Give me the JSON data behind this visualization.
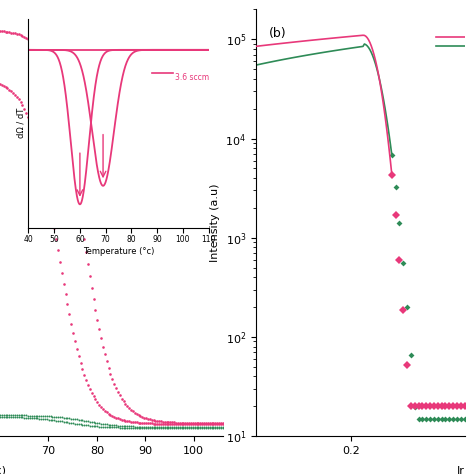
{
  "pink_color": "#E8387A",
  "green_color": "#2E8B57",
  "bg_color": "#FFFFFF",
  "inset_label": "3.6 sccm",
  "panel_b_label": "(b)",
  "ylabel_b": "Intensity (a.u)",
  "xlabel_b": "Ir",
  "xlabel_a_partial": "°c)",
  "ylabel_a_inset": "dΩ / dT",
  "xlabel_a_inset": "Temperature (°c)"
}
